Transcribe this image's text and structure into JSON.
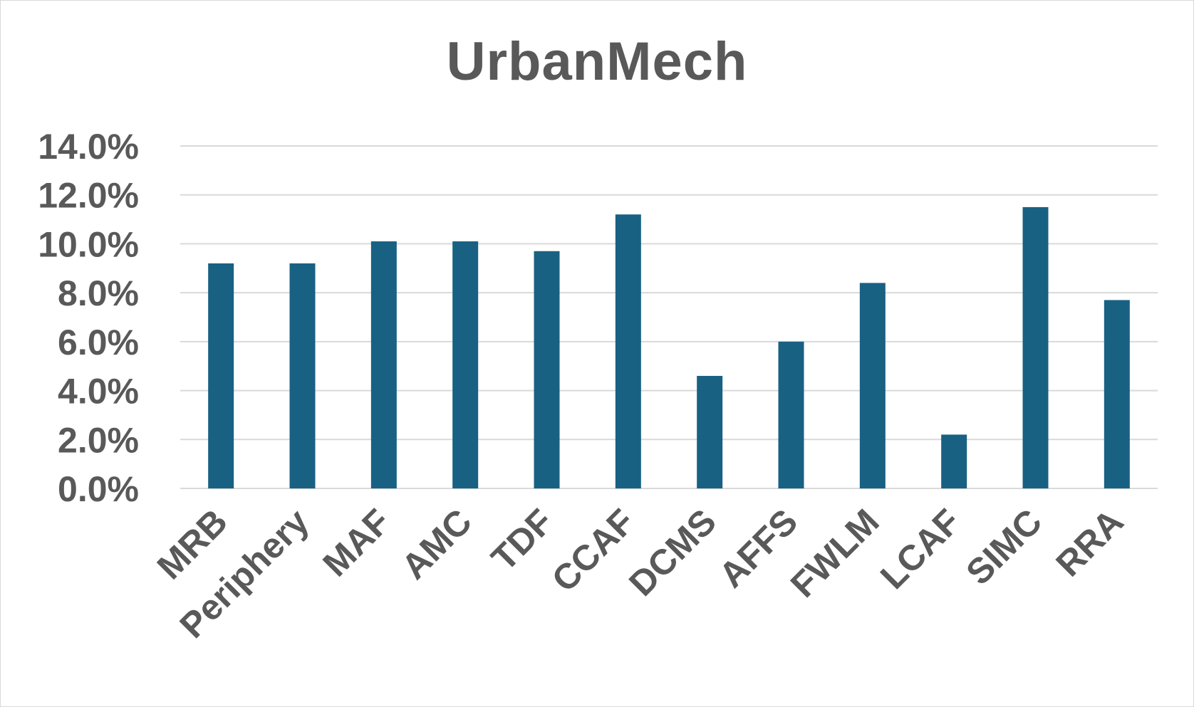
{
  "chart_data": {
    "type": "bar",
    "title": "UrbanMech",
    "xlabel": "",
    "ylabel": "",
    "categories": [
      "MRB",
      "Periphery",
      "MAF",
      "AMC",
      "TDF",
      "CCAF",
      "DCMS",
      "AFFS",
      "FWLM",
      "LCAF",
      "SIMC",
      "RRA"
    ],
    "series": [
      {
        "values": [
          9.2,
          9.2,
          10.1,
          10.1,
          9.7,
          11.2,
          4.6,
          6.0,
          8.4,
          2.2,
          11.5,
          7.7
        ]
      }
    ],
    "ylim": [
      0,
      14
    ],
    "ytick_step": 2,
    "ytick_labels": [
      "0.0%",
      "2.0%",
      "4.0%",
      "6.0%",
      "8.0%",
      "10.0%",
      "12.0%",
      "14.0%"
    ],
    "grid": "horizontal",
    "legend": "none",
    "colors": {
      "bar": "#186183",
      "grid": "#d9d9d9",
      "text": "#595959"
    }
  }
}
